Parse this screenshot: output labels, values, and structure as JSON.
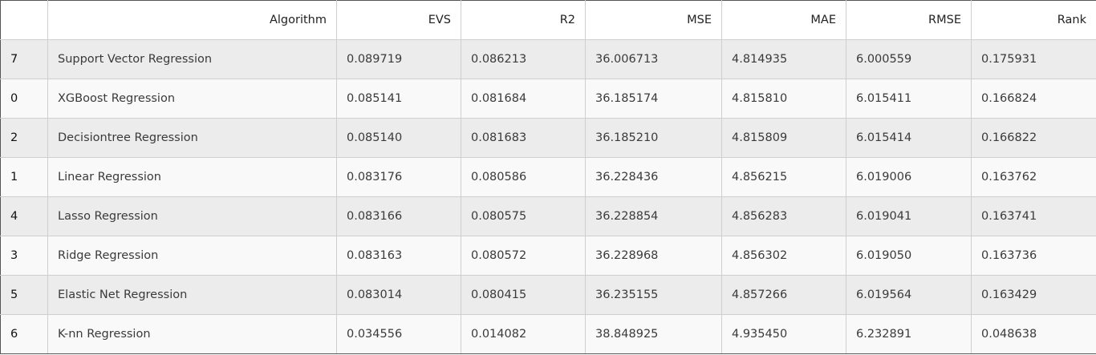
{
  "table": {
    "columns": [
      "",
      "Algorithm",
      "EVS",
      "R2",
      "MSE",
      "MAE",
      "RMSE",
      "Rank"
    ],
    "rows": [
      {
        "index": "7",
        "algorithm": "Support Vector Regression",
        "evs": "0.089719",
        "r2": "0.086213",
        "mse": "36.006713",
        "mae": "4.814935",
        "rmse": "6.000559",
        "rank": "0.175931"
      },
      {
        "index": "0",
        "algorithm": "XGBoost Regression",
        "evs": "0.085141",
        "r2": "0.081684",
        "mse": "36.185174",
        "mae": "4.815810",
        "rmse": "6.015411",
        "rank": "0.166824"
      },
      {
        "index": "2",
        "algorithm": "Decisiontree Regression",
        "evs": "0.085140",
        "r2": "0.081683",
        "mse": "36.185210",
        "mae": "4.815809",
        "rmse": "6.015414",
        "rank": "0.166822"
      },
      {
        "index": "1",
        "algorithm": "Linear Regression",
        "evs": "0.083176",
        "r2": "0.080586",
        "mse": "36.228436",
        "mae": "4.856215",
        "rmse": "6.019006",
        "rank": "0.163762"
      },
      {
        "index": "4",
        "algorithm": "Lasso Regression",
        "evs": "0.083166",
        "r2": "0.080575",
        "mse": "36.228854",
        "mae": "4.856283",
        "rmse": "6.019041",
        "rank": "0.163741"
      },
      {
        "index": "3",
        "algorithm": "Ridge Regression",
        "evs": "0.083163",
        "r2": "0.080572",
        "mse": "36.228968",
        "mae": "4.856302",
        "rmse": "6.019050",
        "rank": "0.163736"
      },
      {
        "index": "5",
        "algorithm": "Elastic Net Regression",
        "evs": "0.083014",
        "r2": "0.080415",
        "mse": "36.235155",
        "mae": "4.857266",
        "rmse": "6.019564",
        "rank": "0.163429"
      },
      {
        "index": "6",
        "algorithm": "K-nn Regression",
        "evs": "0.034556",
        "r2": "0.014082",
        "mse": "38.848925",
        "mae": "4.935450",
        "rmse": "6.232891",
        "rank": "0.048638"
      }
    ]
  }
}
